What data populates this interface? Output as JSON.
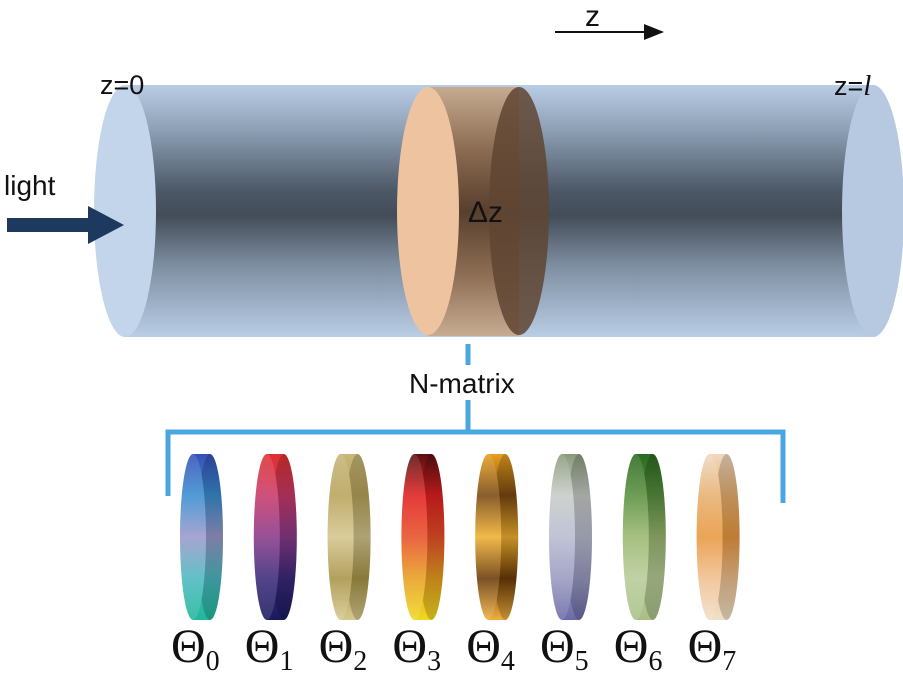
{
  "axis": {
    "label": "z"
  },
  "positions": {
    "start_label": "z=0",
    "end_prefix": "z=",
    "end_symbol": "l"
  },
  "input": {
    "label": "light"
  },
  "slice": {
    "label": "Δz"
  },
  "matrix": {
    "label": "N-matrix"
  },
  "components": [
    {
      "symbol": "Θ",
      "index": "0",
      "colors": [
        "#3550b8",
        "#3a8ed0",
        "#9a9acb",
        "#4cb8c0",
        "#1fb89a"
      ]
    },
    {
      "symbol": "Θ",
      "index": "1",
      "colors": [
        "#e03030",
        "#c83a6a",
        "#8a3a8a",
        "#3a2a7a",
        "#1a1a5e"
      ]
    },
    {
      "symbol": "Θ",
      "index": "2",
      "colors": [
        "#c7b677",
        "#b8a35a",
        "#d4c68e",
        "#a89448",
        "#d6c98f"
      ]
    },
    {
      "symbol": "Θ",
      "index": "3",
      "colors": [
        "#5a1010",
        "#e02020",
        "#e85028",
        "#e8a020",
        "#f0d820"
      ]
    },
    {
      "symbol": "Θ",
      "index": "4",
      "colors": [
        "#e8a020",
        "#7a4810",
        "#f0b030",
        "#6a3a08",
        "#f0b040"
      ]
    },
    {
      "symbol": "Θ",
      "index": "5",
      "colors": [
        "#8a9a7a",
        "#c8ccc8",
        "#b8bcd0",
        "#9a9ac0",
        "#6a6aa8"
      ]
    },
    {
      "symbol": "Θ",
      "index": "6",
      "colors": [
        "#2a6a20",
        "#5a9040",
        "#9ab870",
        "#b8cc98",
        "#a8c088"
      ]
    },
    {
      "symbol": "Θ",
      "index": "7",
      "colors": [
        "#f0d8c0",
        "#e8b070",
        "#e89840",
        "#f0c090",
        "#f0e0c8"
      ]
    }
  ]
}
